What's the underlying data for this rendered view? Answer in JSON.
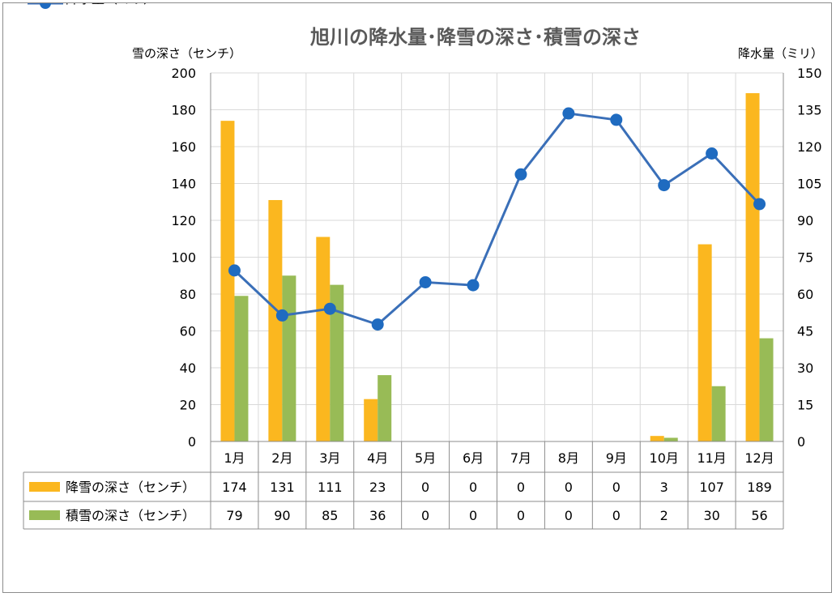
{
  "chart_data": {
    "type": "bar",
    "title": "旭川の降水量･降雪の深さ･積雪の深さ",
    "y_left_label": "雪の深さ（センチ）",
    "y_right_label": "降水量（ミリ）",
    "categories": [
      "1月",
      "2月",
      "3月",
      "4月",
      "5月",
      "6月",
      "7月",
      "8月",
      "9月",
      "10月",
      "11月",
      "12月"
    ],
    "y_left_range": [
      0,
      200
    ],
    "y_left_ticks": [
      0,
      20,
      40,
      60,
      80,
      100,
      120,
      140,
      160,
      180,
      200
    ],
    "y_right_range": [
      0,
      150
    ],
    "y_right_ticks": [
      0,
      15,
      30,
      45,
      60,
      75,
      90,
      105,
      120,
      135,
      150
    ],
    "grid": true,
    "legend_placement": "data-table",
    "series": [
      {
        "name": "降雪の深さ（センチ）",
        "type": "bar",
        "axis": "left",
        "color": "#FBB71F",
        "values": [
          174,
          131,
          111,
          23,
          0,
          0,
          0,
          0,
          0,
          3,
          107,
          189
        ]
      },
      {
        "name": "積雪の深さ（センチ）",
        "type": "bar",
        "axis": "left",
        "color": "#98BB56",
        "values": [
          79,
          90,
          85,
          36,
          0,
          0,
          0,
          0,
          0,
          2,
          30,
          56
        ]
      },
      {
        "name": "降水量（ミリ）",
        "type": "line",
        "axis": "right",
        "color": "#3A6FB8",
        "values": [
          "69.6",
          "51.3",
          "54",
          "47.6",
          "64.8",
          "63.6",
          "108.7",
          "133.5",
          "130.9",
          "104.3",
          "117.2",
          "96.6"
        ]
      }
    ]
  }
}
